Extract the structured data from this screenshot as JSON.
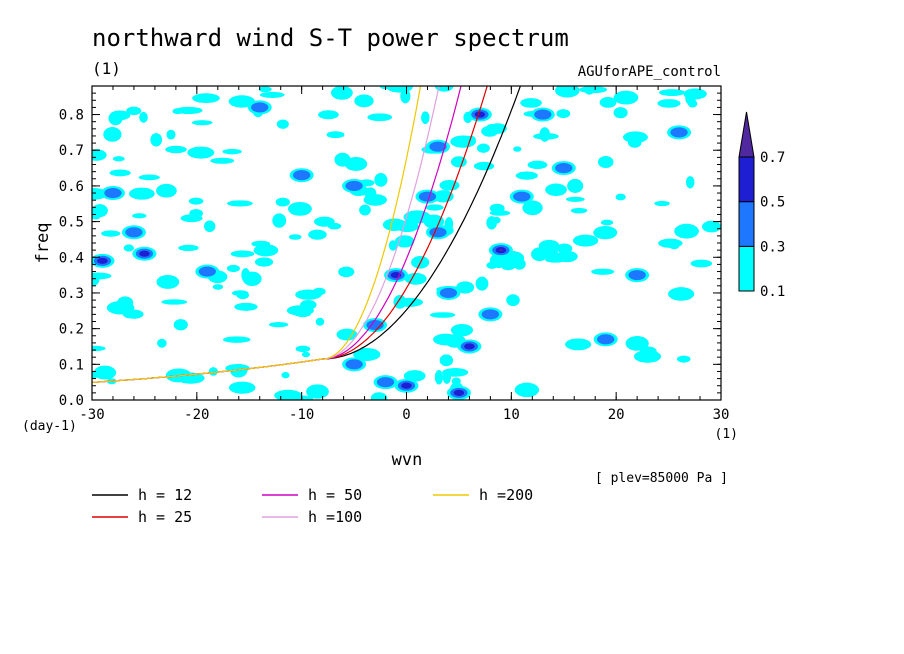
{
  "chart_data": {
    "type": "heatmap",
    "title": "northward wind S-T power spectrum",
    "subtitle_left": "(1)",
    "subtitle_right": "AGUforAPE_control",
    "xlabel": "wvn",
    "ylabel": "freq",
    "x_unit": "(1)",
    "y_unit": "(day-1)",
    "xlim": [
      -30,
      30
    ],
    "ylim": [
      0,
      0.88
    ],
    "x_ticks": [
      -30,
      -20,
      -10,
      0,
      10,
      20,
      30
    ],
    "x_tick_labels": [
      "-30",
      "-20",
      "-10",
      "0",
      "10",
      "20",
      "30"
    ],
    "y_ticks": [
      0,
      0.1,
      0.2,
      0.3,
      0.4,
      0.5,
      0.6,
      0.7,
      0.8
    ],
    "y_tick_labels": [
      "0.0",
      "0.1",
      "0.2",
      "0.3",
      "0.4",
      "0.5",
      "0.6",
      "0.7",
      "0.8"
    ],
    "annotation": "[ plev=85000 Pa ]",
    "colorbar": {
      "levels": [
        0.1,
        0.3,
        0.5,
        0.7
      ],
      "level_labels": [
        "0.1",
        "0.3",
        "0.5",
        "0.7"
      ],
      "colors": [
        "#00ffff",
        "#1e78ff",
        "#1e1ed2",
        "#5028a0"
      ]
    },
    "contour_blobs": [
      {
        "x": -26,
        "y": 0.47,
        "level": 1
      },
      {
        "x": -25,
        "y": 0.41,
        "level": 2
      },
      {
        "x": -29,
        "y": 0.39,
        "level": 2
      },
      {
        "x": -28,
        "y": 0.58,
        "level": 1
      },
      {
        "x": -10,
        "y": 0.63,
        "level": 1
      },
      {
        "x": -5,
        "y": 0.6,
        "level": 1
      },
      {
        "x": -3,
        "y": 0.21,
        "level": 1
      },
      {
        "x": -2,
        "y": 0.05,
        "level": 1
      },
      {
        "x": -1,
        "y": 0.35,
        "level": 2
      },
      {
        "x": 0,
        "y": 0.04,
        "level": 2
      },
      {
        "x": 3,
        "y": 0.47,
        "level": 1
      },
      {
        "x": 3,
        "y": 0.71,
        "level": 1
      },
      {
        "x": 5,
        "y": 0.02,
        "level": 2
      },
      {
        "x": 6,
        "y": 0.15,
        "level": 2
      },
      {
        "x": 8,
        "y": 0.24,
        "level": 1
      },
      {
        "x": 9,
        "y": 0.42,
        "level": 3
      },
      {
        "x": 13,
        "y": 0.8,
        "level": 1
      },
      {
        "x": 7,
        "y": 0.8,
        "level": 2
      },
      {
        "x": 19,
        "y": 0.17,
        "level": 1
      },
      {
        "x": 22,
        "y": 0.35,
        "level": 1
      },
      {
        "x": -19,
        "y": 0.36,
        "level": 1
      },
      {
        "x": -5,
        "y": 0.1,
        "level": 1
      },
      {
        "x": 11,
        "y": 0.57,
        "level": 1
      },
      {
        "x": 26,
        "y": 0.75,
        "level": 1
      },
      {
        "x": -14,
        "y": 0.82,
        "level": 1
      },
      {
        "x": 2,
        "y": 0.57,
        "level": 1
      },
      {
        "x": 4,
        "y": 0.3,
        "level": 1
      },
      {
        "x": 15,
        "y": 0.65,
        "level": 1
      }
    ],
    "series": [
      {
        "name": "h = 12",
        "h": 12,
        "color": "#000000"
      },
      {
        "name": "h = 25",
        "h": 25,
        "color": "#e00000"
      },
      {
        "name": "h = 50",
        "h": 50,
        "color": "#d000c0"
      },
      {
        "name": "h =100",
        "h": 100,
        "color": "#e0a0e0"
      },
      {
        "name": "h =200",
        "h": 200,
        "color": "#f0c800"
      }
    ]
  }
}
